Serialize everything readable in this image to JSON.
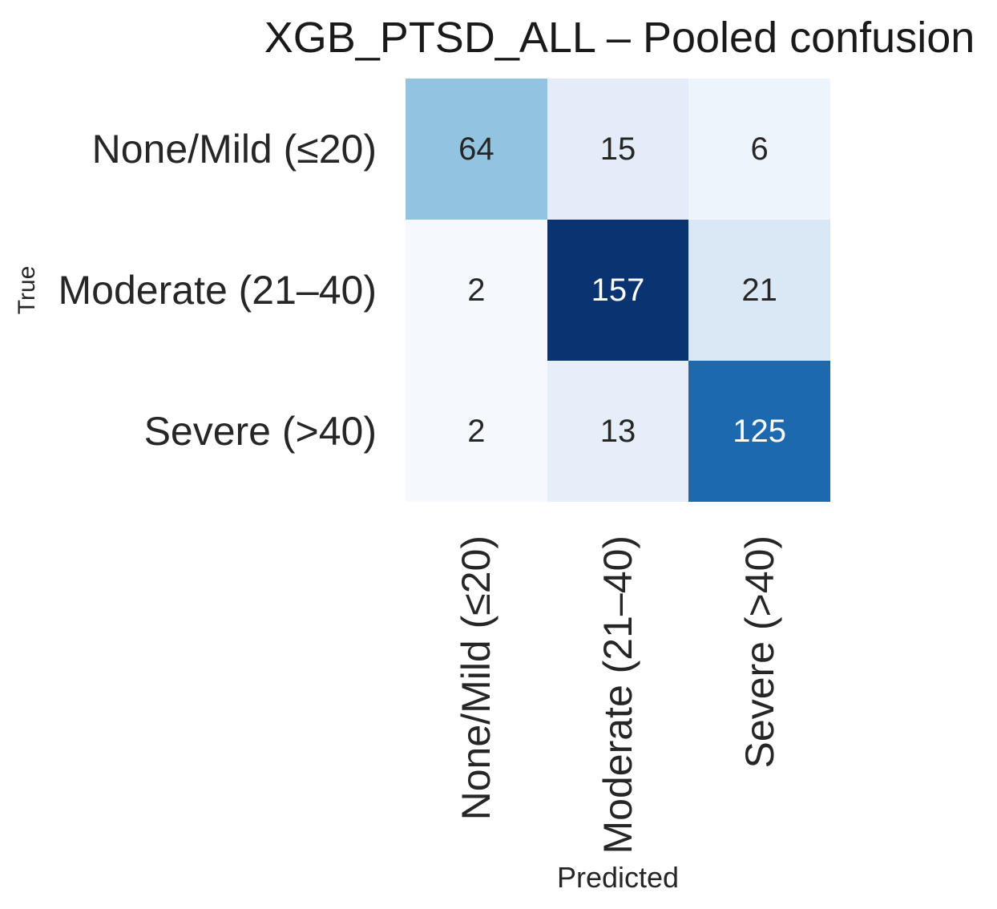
{
  "chart_data": {
    "type": "heatmap",
    "title": "XGB_PTSD_ALL – Pooled confusion",
    "xlabel": "Predicted",
    "ylabel": "True",
    "x_categories": [
      "None/Mild (≤20)",
      "Moderate (21–40)",
      "Severe (>40)"
    ],
    "y_categories": [
      "None/Mild (≤20)",
      "Moderate (21–40)",
      "Severe (>40)"
    ],
    "matrix": [
      [
        64,
        15,
        6
      ],
      [
        2,
        157,
        21
      ],
      [
        2,
        13,
        125
      ]
    ],
    "colormap": "Blues",
    "grid": "off",
    "legend": "none",
    "cell_colors": [
      [
        "#92c4e0",
        "#e3ecf8",
        "#eef4fc"
      ],
      [
        "#f5f9fe",
        "#093371",
        "#dae8f5"
      ],
      [
        "#f5f9fe",
        "#e6eef9",
        "#1c69b0"
      ]
    ],
    "value_colors": [
      [
        "#262626",
        "#262626",
        "#262626"
      ],
      [
        "#262626",
        "#ffffff",
        "#262626"
      ],
      [
        "#262626",
        "#262626",
        "#ffffff"
      ]
    ],
    "text_color": "#262626",
    "background_color": "#ffffff"
  }
}
